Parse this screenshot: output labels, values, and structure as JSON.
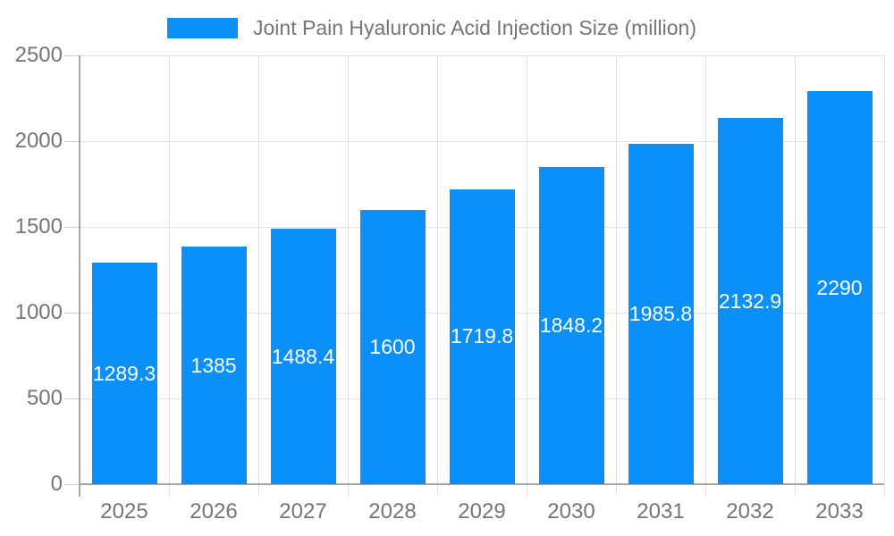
{
  "chart_data": {
    "type": "bar",
    "title": "Joint Pain Hyaluronic Acid Injection Size (million)",
    "categories": [
      "2025",
      "2026",
      "2027",
      "2028",
      "2029",
      "2030",
      "2031",
      "2032",
      "2033"
    ],
    "values": [
      1289.3,
      1385,
      1488.4,
      1600,
      1719.8,
      1848.2,
      1985.8,
      2132.9,
      2290
    ],
    "value_labels": [
      "1289.3",
      "1385",
      "1488.4",
      "1600",
      "1719.8",
      "1848.2",
      "1985.8",
      "2132.9",
      "2290"
    ],
    "xlabel": "",
    "ylabel": "",
    "ylim": [
      0,
      2500
    ],
    "yticks": [
      0,
      500,
      1000,
      1500,
      2000,
      2500
    ],
    "grid": true,
    "legend_position": "top",
    "colors": {
      "bar": "#0A90F8",
      "value_label": "#FFFFFF",
      "grid": "#E0E0E0",
      "axis": "#A6A6A6",
      "tick": "#CCCCCC",
      "tick_label": "#757575",
      "title": "#757575",
      "background": "#FFFFFF"
    }
  }
}
